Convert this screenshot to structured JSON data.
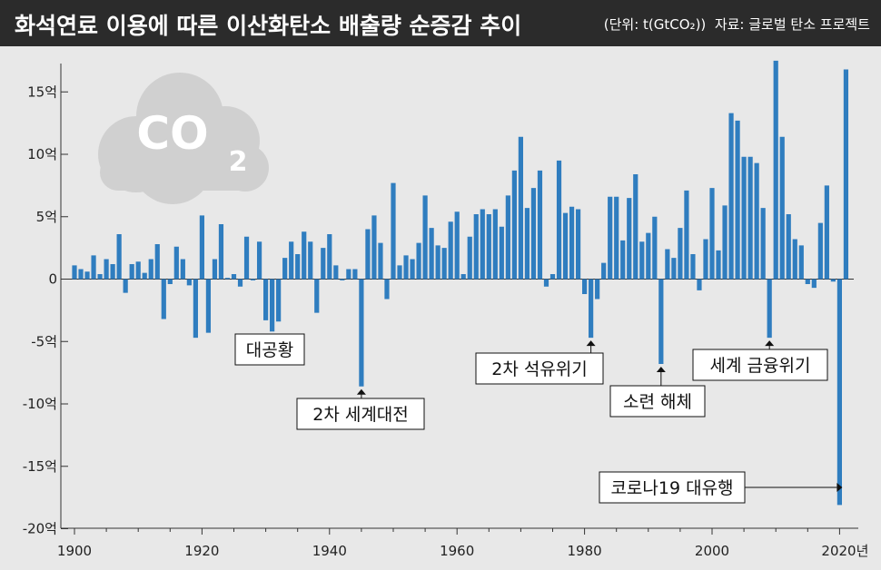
{
  "header": {
    "title": "화석연료 이용에 따른 이산화탄소 배출량 순증감 추이",
    "unit": "(단위: t(GtCO₂))",
    "source": "자료: 글로벌 탄소 프로젝트"
  },
  "colors": {
    "bar": "#2f7dbf",
    "header_bg": "#2b2b2b",
    "background": "#e8e8e8",
    "cloud": "#d0d0d0"
  },
  "cloud_icon": {
    "name": "co2-cloud-icon",
    "text": "CO",
    "subscript": "2"
  },
  "chart_data": {
    "type": "bar",
    "xlim": [
      1899,
      2022
    ],
    "ylim": [
      -20,
      17.5
    ],
    "yticks": [
      {
        "value": 15,
        "label": "15억"
      },
      {
        "value": 10,
        "label": "10억"
      },
      {
        "value": 5,
        "label": "5억"
      },
      {
        "value": 0,
        "label": "0"
      },
      {
        "value": -5,
        "label": "-5억"
      },
      {
        "value": -10,
        "label": "-10억"
      },
      {
        "value": -15,
        "label": "-15억"
      },
      {
        "value": -20,
        "label": "-20억"
      }
    ],
    "xticks": [
      {
        "value": 1900,
        "label": "1900"
      },
      {
        "value": 1920,
        "label": "1920"
      },
      {
        "value": 1940,
        "label": "1940"
      },
      {
        "value": 1960,
        "label": "1960"
      },
      {
        "value": 1980,
        "label": "1980"
      },
      {
        "value": 2000,
        "label": "2000"
      },
      {
        "value": 2020,
        "label": "2020년"
      }
    ],
    "x": [
      1900,
      1901,
      1902,
      1903,
      1904,
      1905,
      1906,
      1907,
      1908,
      1909,
      1910,
      1911,
      1912,
      1913,
      1914,
      1915,
      1916,
      1917,
      1918,
      1919,
      1920,
      1921,
      1922,
      1923,
      1924,
      1925,
      1926,
      1927,
      1928,
      1929,
      1930,
      1931,
      1932,
      1933,
      1934,
      1935,
      1936,
      1937,
      1938,
      1939,
      1940,
      1941,
      1942,
      1943,
      1944,
      1945,
      1946,
      1947,
      1948,
      1949,
      1950,
      1951,
      1952,
      1953,
      1954,
      1955,
      1956,
      1957,
      1958,
      1959,
      1960,
      1961,
      1962,
      1963,
      1964,
      1965,
      1966,
      1967,
      1968,
      1969,
      1970,
      1971,
      1972,
      1973,
      1974,
      1975,
      1976,
      1977,
      1978,
      1979,
      1980,
      1981,
      1982,
      1983,
      1984,
      1985,
      1986,
      1987,
      1988,
      1989,
      1990,
      1991,
      1992,
      1993,
      1994,
      1995,
      1996,
      1997,
      1998,
      1999,
      2000,
      2001,
      2002,
      2003,
      2004,
      2005,
      2006,
      2007,
      2008,
      2009,
      2010,
      2011,
      2012,
      2013,
      2014,
      2015,
      2016,
      2017,
      2018,
      2019,
      2020,
      2021
    ],
    "values": [
      1.1,
      0.8,
      0.6,
      1.9,
      0.4,
      1.6,
      1.2,
      3.6,
      -1.1,
      1.2,
      1.4,
      0.5,
      1.6,
      2.8,
      -3.2,
      -0.4,
      2.6,
      1.6,
      -0.5,
      -4.7,
      5.1,
      -4.3,
      1.6,
      4.4,
      0.1,
      0.4,
      -0.6,
      3.4,
      -0.1,
      3.0,
      -3.3,
      -4.2,
      -3.4,
      1.7,
      3.0,
      2.0,
      3.8,
      3.0,
      -2.7,
      2.5,
      3.6,
      1.1,
      -0.1,
      0.8,
      0.8,
      -8.6,
      4.0,
      5.1,
      2.9,
      -1.6,
      7.7,
      1.1,
      1.9,
      1.6,
      2.9,
      6.7,
      4.1,
      2.7,
      2.5,
      4.6,
      5.4,
      0.4,
      3.4,
      5.2,
      5.6,
      5.2,
      5.6,
      4.2,
      6.7,
      8.7,
      11.4,
      5.7,
      7.3,
      8.7,
      -0.6,
      0.4,
      9.5,
      5.3,
      5.8,
      5.6,
      -1.2,
      -4.7,
      -1.6,
      1.3,
      6.6,
      6.6,
      3.1,
      6.5,
      8.4,
      3.0,
      3.7,
      5.0,
      -6.8,
      2.4,
      1.7,
      4.1,
      7.1,
      2.0,
      -0.9,
      3.2,
      7.3,
      2.3,
      5.9,
      13.3,
      12.7,
      9.8,
      9.8,
      9.3,
      5.7,
      -4.7,
      17.5,
      11.4,
      5.2,
      3.2,
      2.7,
      -0.4,
      -0.7,
      4.5,
      7.5,
      -0.2,
      -18.1,
      16.8
    ],
    "annotations": [
      {
        "year": 1931,
        "value": -4.2,
        "label": "대공황",
        "box_x": 297,
        "box_y": 385,
        "box_w": 76
      },
      {
        "year": 1945,
        "value": -8.6,
        "label": "2차 세계대전",
        "box_x": 397,
        "box_y": 456,
        "box_w": 140
      },
      {
        "year": 1981,
        "value": -4.7,
        "label": "2차 석유위기",
        "box_x": 594,
        "box_y": 406,
        "box_w": 140
      },
      {
        "year": 1992,
        "value": -6.8,
        "label": "소련 해체",
        "box_x": 724,
        "box_y": 442,
        "box_w": 104
      },
      {
        "year": 2009,
        "value": -4.7,
        "label": "세계 금융위기",
        "box_x": 837,
        "box_y": 402,
        "box_w": 148
      },
      {
        "year": 2020,
        "value": -18.1,
        "label": "코로나19 대유행",
        "box_x": 820,
        "box_y": 537,
        "box_w": 160,
        "side": "left"
      }
    ]
  }
}
